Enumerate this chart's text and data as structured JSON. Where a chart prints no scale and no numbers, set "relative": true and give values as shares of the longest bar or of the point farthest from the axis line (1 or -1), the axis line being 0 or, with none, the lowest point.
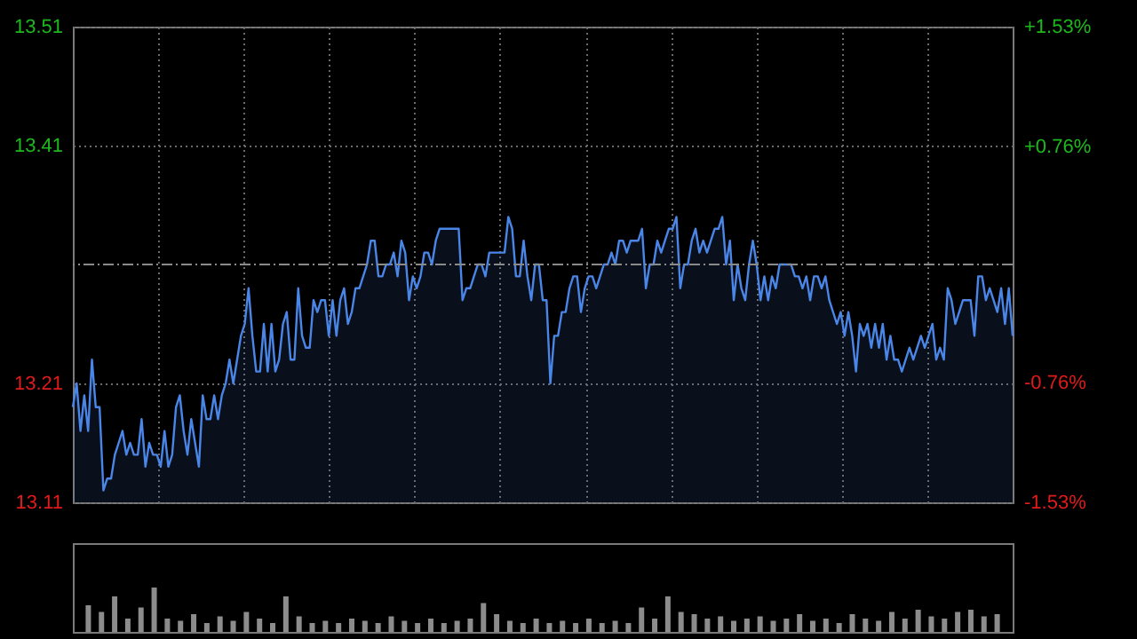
{
  "chart_data": [
    {
      "type": "area",
      "categories": [
        null,
        null,
        null,
        null,
        null,
        null,
        null,
        null,
        null,
        null,
        null,
        null,
        null,
        null,
        null,
        null,
        null,
        null,
        null,
        null,
        null,
        null,
        null,
        null,
        null,
        null,
        null,
        null,
        null,
        null,
        null,
        null,
        null,
        null,
        null,
        null,
        null,
        null,
        null,
        null,
        null,
        null,
        null,
        null,
        null,
        null,
        null,
        null,
        null,
        null,
        null,
        null,
        null,
        null,
        null,
        null,
        null,
        null,
        null,
        null,
        null,
        null,
        null,
        null,
        null,
        null,
        null,
        null,
        null,
        null,
        null,
        null,
        null,
        null,
        null,
        null,
        null,
        null,
        null,
        null,
        null,
        null,
        null,
        null,
        null,
        null,
        null,
        null,
        null,
        null,
        null,
        null,
        null,
        null,
        null,
        null,
        null,
        null,
        null,
        null,
        null,
        null,
        null,
        null,
        null,
        null,
        null,
        null,
        null,
        null,
        null,
        null,
        null,
        null,
        null,
        null,
        null,
        null,
        null,
        null,
        null,
        null,
        null,
        null,
        null,
        null,
        null,
        null,
        null,
        null,
        null,
        null,
        null,
        null,
        null,
        null,
        null,
        null,
        null,
        null,
        null,
        null,
        null,
        null,
        null,
        null,
        null,
        null,
        null,
        null,
        null,
        null,
        null,
        null,
        null,
        null,
        null,
        null,
        null,
        null,
        null,
        null,
        null,
        null,
        null,
        null,
        null,
        null,
        null,
        null,
        null,
        null,
        null,
        null,
        null,
        null,
        null,
        null,
        null,
        null,
        null,
        null,
        null,
        null,
        null,
        null,
        null,
        null,
        null,
        null,
        null,
        null,
        null,
        null,
        null,
        null,
        null,
        null,
        null,
        null,
        null,
        null,
        null,
        null,
        null,
        null,
        null,
        null,
        null,
        null,
        null,
        null,
        null,
        null,
        null,
        null,
        null,
        null,
        null,
        null,
        null,
        null,
        null,
        null,
        null,
        null,
        null,
        null,
        null,
        null,
        null,
        null,
        null,
        null,
        null,
        null,
        null,
        null,
        null,
        null,
        null,
        null,
        null,
        null,
        null,
        null,
        null
      ],
      "series": [
        {
          "color": "#4a86e8",
          "values": [
            13.19,
            13.21,
            13.17,
            13.2,
            13.17,
            13.23,
            13.19,
            13.19,
            13.12,
            13.13,
            13.13,
            13.15,
            13.16,
            13.17,
            13.15,
            13.16,
            13.15,
            13.15,
            13.18,
            13.14,
            13.16,
            13.15,
            13.15,
            13.14,
            13.17,
            13.14,
            13.15,
            13.19,
            13.2,
            13.17,
            13.15,
            13.18,
            13.16,
            13.14,
            13.2,
            13.18,
            13.18,
            13.2,
            13.18,
            13.2,
            13.21,
            13.23,
            13.21,
            13.23,
            13.25,
            13.26,
            13.29,
            13.25,
            13.22,
            13.22,
            13.26,
            13.22,
            13.26,
            13.22,
            13.23,
            13.26,
            13.27,
            13.23,
            13.23,
            13.29,
            13.25,
            13.24,
            13.24,
            13.28,
            13.27,
            13.28,
            13.28,
            13.25,
            13.28,
            13.25,
            13.28,
            13.29,
            13.26,
            13.27,
            13.29,
            13.29,
            13.3,
            13.31,
            13.33,
            13.33,
            13.3,
            13.3,
            13.31,
            13.31,
            13.32,
            13.3,
            13.33,
            13.32,
            13.28,
            13.3,
            13.29,
            13.3,
            13.32,
            13.32,
            13.31,
            13.33,
            13.34,
            13.34,
            13.34,
            13.34,
            13.34,
            13.34,
            13.28,
            13.29,
            13.29,
            13.3,
            13.31,
            13.31,
            13.3,
            13.32,
            13.32,
            13.32,
            13.32,
            13.32,
            13.35,
            13.34,
            13.3,
            13.3,
            13.33,
            13.3,
            13.28,
            13.31,
            13.31,
            13.28,
            13.28,
            13.21,
            13.25,
            13.25,
            13.27,
            13.27,
            13.29,
            13.3,
            13.3,
            13.27,
            13.29,
            13.3,
            13.3,
            13.29,
            13.3,
            13.31,
            13.31,
            13.32,
            13.31,
            13.33,
            13.33,
            13.32,
            13.33,
            13.33,
            13.33,
            13.34,
            13.29,
            13.31,
            13.31,
            13.33,
            13.32,
            13.33,
            13.34,
            13.34,
            13.35,
            13.29,
            13.31,
            13.31,
            13.33,
            13.34,
            13.32,
            13.33,
            13.32,
            13.33,
            13.34,
            13.34,
            13.35,
            13.31,
            13.33,
            13.28,
            13.31,
            13.29,
            13.28,
            13.31,
            13.33,
            13.31,
            13.28,
            13.3,
            13.28,
            13.3,
            13.29,
            13.31,
            13.31,
            13.31,
            13.31,
            13.3,
            13.3,
            13.29,
            13.3,
            13.28,
            13.3,
            13.3,
            13.29,
            13.3,
            13.28,
            13.27,
            13.26,
            13.27,
            13.25,
            13.27,
            13.25,
            13.22,
            13.26,
            13.25,
            13.26,
            13.24,
            13.26,
            13.24,
            13.26,
            13.23,
            13.25,
            13.23,
            13.23,
            13.22,
            13.23,
            13.24,
            13.23,
            13.24,
            13.25,
            13.24,
            13.25,
            13.26,
            13.23,
            13.24,
            13.23,
            13.29,
            13.28,
            13.26,
            13.27,
            13.28,
            13.28,
            13.28,
            13.25,
            13.3,
            13.3,
            13.28,
            13.29,
            13.28,
            13.27,
            13.29,
            13.26,
            13.29,
            13.25
          ]
        }
      ],
      "ylim": [
        13.11,
        13.51
      ],
      "yticks": [
        13.11,
        13.21,
        13.41,
        13.51
      ],
      "y2lim": [
        -1.53,
        1.53
      ],
      "y2ticks": [
        {
          "value": -1.53,
          "label": "-1.53%"
        },
        {
          "value": -0.76,
          "label": "-0.76%"
        },
        {
          "value": 0.76,
          "label": "+0.76%"
        },
        {
          "value": 1.53,
          "label": "+1.53%"
        }
      ],
      "ref_lines": [
        {
          "axis": "y",
          "value": 13.31,
          "color": "#8a8a8a",
          "line_style": "dashdot"
        }
      ],
      "grid": true,
      "tick_labels": "y"
    },
    {
      "type": "bar",
      "relative": true,
      "color": "#8c8c8c",
      "tick_labels": false,
      "grid": false,
      "categories": [
        null,
        null,
        null,
        null,
        null,
        null,
        null,
        null,
        null,
        null,
        null,
        null,
        null,
        null,
        null,
        null,
        null,
        null,
        null,
        null,
        null,
        null,
        null,
        null,
        null,
        null,
        null,
        null,
        null,
        null,
        null,
        null,
        null,
        null,
        null,
        null,
        null,
        null,
        null,
        null,
        null,
        null,
        null,
        null,
        null,
        null,
        null,
        null,
        null,
        null,
        null,
        null,
        null,
        null,
        null,
        null,
        null,
        null,
        null,
        null,
        null,
        null,
        null,
        null,
        null,
        null,
        null,
        null,
        null,
        null
      ],
      "values": [
        0.6,
        0.45,
        0.8,
        0.3,
        0.55,
        1.0,
        0.3,
        0.25,
        0.4,
        0.2,
        0.35,
        0.25,
        0.45,
        0.3,
        0.2,
        0.8,
        0.35,
        0.2,
        0.25,
        0.2,
        0.3,
        0.25,
        0.2,
        0.35,
        0.25,
        0.2,
        0.3,
        0.2,
        0.25,
        0.3,
        0.65,
        0.4,
        0.25,
        0.2,
        0.3,
        0.2,
        0.25,
        0.2,
        0.3,
        0.2,
        0.25,
        0.2,
        0.55,
        0.3,
        0.8,
        0.45,
        0.4,
        0.3,
        0.35,
        0.25,
        0.3,
        0.35,
        0.25,
        0.3,
        0.4,
        0.25,
        0.3,
        0.2,
        0.4,
        0.3,
        0.25,
        0.45,
        0.3,
        0.5,
        0.35,
        0.3,
        0.45,
        0.5,
        0.35,
        0.4
      ]
    }
  ]
}
